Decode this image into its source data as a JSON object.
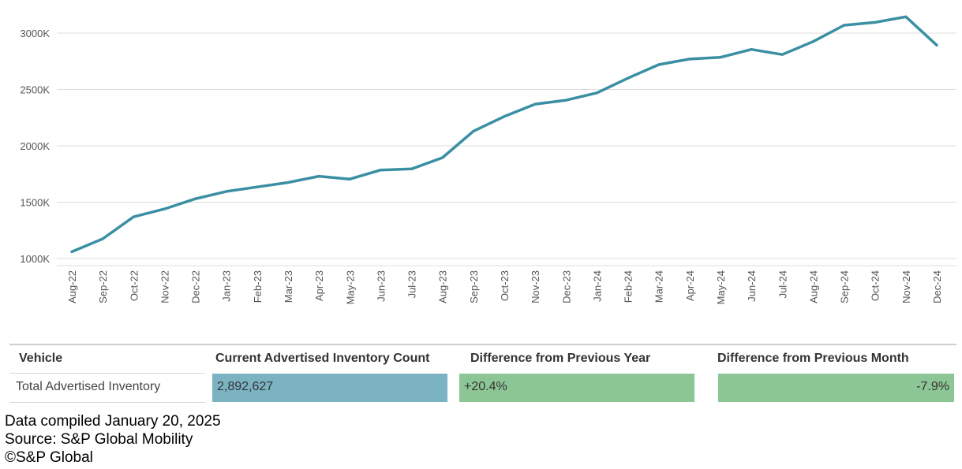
{
  "chart_data": {
    "type": "line",
    "title": "",
    "xlabel": "",
    "ylabel": "",
    "ylim": [
      1000,
      3000
    ],
    "y_ticks": [
      "1000K",
      "1500K",
      "2000K",
      "2500K",
      "3000K"
    ],
    "y_tick_values": [
      1000,
      1500,
      2000,
      2500,
      3000
    ],
    "grid": true,
    "line_color": "#3a8fa3",
    "categories": [
      "Aug-22",
      "Sep-22",
      "Oct-22",
      "Nov-22",
      "Dec-22",
      "Jan-23",
      "Feb-23",
      "Mar-23",
      "Apr-23",
      "May-23",
      "Jun-23",
      "Jul-23",
      "Aug-23",
      "Sep-23",
      "Oct-23",
      "Nov-23",
      "Dec-23",
      "Jan-24",
      "Feb-24",
      "Mar-24",
      "Apr-24",
      "May-24",
      "Jun-24",
      "Jul-24",
      "Aug-24",
      "Sep-24",
      "Oct-24",
      "Nov-24",
      "Dec-24"
    ],
    "series": [
      {
        "values": [
          1060,
          1175,
          1370,
          1440,
          1530,
          1595,
          1635,
          1675,
          1730,
          1705,
          1785,
          1795,
          1895,
          2130,
          2260,
          2370,
          2405,
          2470,
          2600,
          2720,
          2770,
          2785,
          2855,
          2810,
          2925,
          3070,
          3095,
          3145,
          2893
        ]
      }
    ]
  },
  "table": {
    "headers": {
      "vehicle": "Vehicle",
      "count": "Current Advertised Inventory Count",
      "prev_year": "Difference from Previous Year",
      "prev_month": "Difference from Previous Month"
    },
    "row": {
      "vehicle": "Total Advertised Inventory",
      "count": "2,892,627",
      "prev_year": "+20.4%",
      "prev_month": "-7.9%"
    },
    "colors": {
      "count_bar": "#7bb3c3",
      "diff_bar": "#8cc695"
    }
  },
  "footer": {
    "compiled": "Data compiled January 20, 2025",
    "source": "Source: S&P Global Mobility",
    "copyright": "©S&P Global"
  }
}
